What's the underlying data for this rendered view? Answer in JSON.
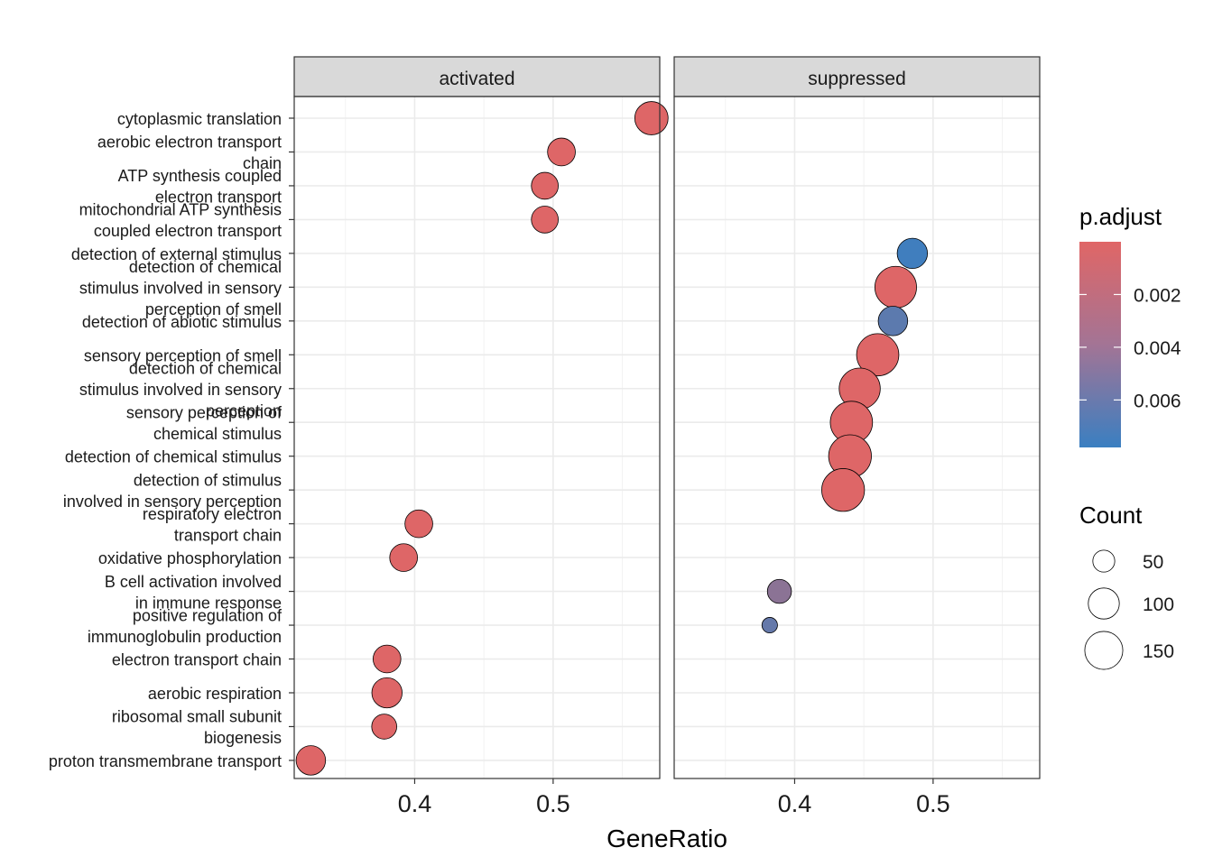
{
  "chart_data": {
    "type": "scatter",
    "xlabel": "GeneRatio",
    "x_ticks": [
      0.4,
      0.5
    ],
    "xlim": [
      0.313,
      0.577
    ],
    "categories": [
      [
        "cytoplasmic translation"
      ],
      [
        "aerobic electron transport",
        "chain"
      ],
      [
        "ATP synthesis coupled",
        "electron transport"
      ],
      [
        "mitochondrial ATP synthesis",
        "coupled electron transport"
      ],
      [
        "detection of external stimulus"
      ],
      [
        "detection of chemical",
        "stimulus involved in sensory",
        "perception of smell"
      ],
      [
        "detection of abiotic stimulus"
      ],
      [
        "sensory perception of smell"
      ],
      [
        "detection of chemical",
        "stimulus involved in sensory",
        "perception"
      ],
      [
        "sensory perception of",
        "chemical stimulus"
      ],
      [
        "detection of chemical stimulus"
      ],
      [
        "detection of stimulus",
        "involved in sensory perception"
      ],
      [
        "respiratory electron",
        "transport chain"
      ],
      [
        "oxidative phosphorylation"
      ],
      [
        "B cell activation involved",
        "in immune response"
      ],
      [
        "positive regulation of",
        "immunoglobulin production"
      ],
      [
        "electron transport chain"
      ],
      [
        "aerobic respiration"
      ],
      [
        "ribosomal small subunit",
        "biogenesis"
      ],
      [
        "proton transmembrane transport"
      ]
    ],
    "panels": [
      {
        "title": "activated",
        "points": [
          {
            "term": 0,
            "x": 0.571,
            "count": 115,
            "p_adjust": 0.0001
          },
          {
            "term": 1,
            "x": 0.506,
            "count": 80,
            "p_adjust": 0.0001
          },
          {
            "term": 2,
            "x": 0.494,
            "count": 75,
            "p_adjust": 0.0001
          },
          {
            "term": 3,
            "x": 0.494,
            "count": 75,
            "p_adjust": 0.0001
          },
          {
            "term": 12,
            "x": 0.403,
            "count": 80,
            "p_adjust": 0.0001
          },
          {
            "term": 13,
            "x": 0.392,
            "count": 80,
            "p_adjust": 0.0001
          },
          {
            "term": 16,
            "x": 0.38,
            "count": 80,
            "p_adjust": 0.0001
          },
          {
            "term": 17,
            "x": 0.38,
            "count": 95,
            "p_adjust": 0.0001
          },
          {
            "term": 18,
            "x": 0.378,
            "count": 65,
            "p_adjust": 0.0001
          },
          {
            "term": 19,
            "x": 0.325,
            "count": 90,
            "p_adjust": 0.0001
          }
        ]
      },
      {
        "title": "suppressed",
        "points": [
          {
            "term": 4,
            "x": 0.485,
            "count": 95,
            "p_adjust": 0.0075
          },
          {
            "term": 5,
            "x": 0.473,
            "count": 180,
            "p_adjust": 0.0001
          },
          {
            "term": 6,
            "x": 0.471,
            "count": 90,
            "p_adjust": 0.0062
          },
          {
            "term": 7,
            "x": 0.46,
            "count": 185,
            "p_adjust": 0.0001
          },
          {
            "term": 8,
            "x": 0.447,
            "count": 175,
            "p_adjust": 0.0001
          },
          {
            "term": 9,
            "x": 0.441,
            "count": 185,
            "p_adjust": 0.0001
          },
          {
            "term": 10,
            "x": 0.44,
            "count": 190,
            "p_adjust": 0.0001
          },
          {
            "term": 11,
            "x": 0.435,
            "count": 190,
            "p_adjust": 0.0001
          },
          {
            "term": 14,
            "x": 0.389,
            "count": 60,
            "p_adjust": 0.004
          },
          {
            "term": 15,
            "x": 0.382,
            "count": 25,
            "p_adjust": 0.0058
          }
        ]
      }
    ],
    "color_legend": {
      "title": "p.adjust",
      "ticks": [
        0.002,
        0.004,
        0.006
      ],
      "range": [
        0.0,
        0.0078
      ],
      "low_color": "#e06666",
      "high_color": "#3a7fc1"
    },
    "size_legend": {
      "title": "Count",
      "values": [
        50,
        100,
        150
      ]
    },
    "grid": true,
    "legend_position": "right"
  }
}
